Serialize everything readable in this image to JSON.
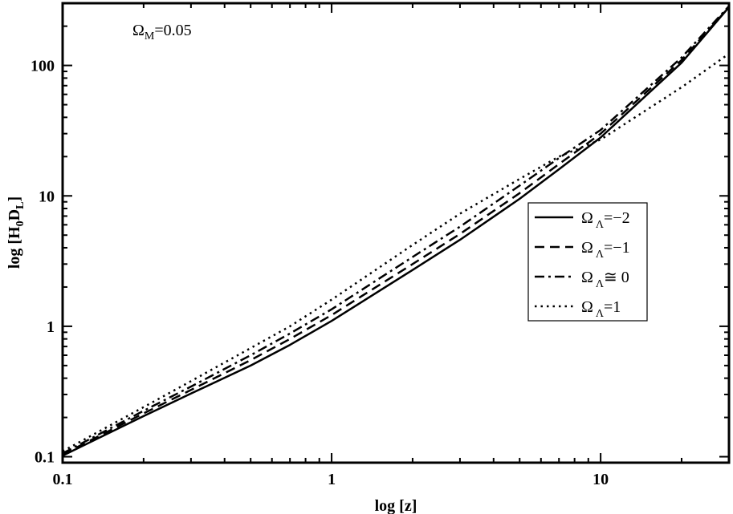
{
  "chart_data": {
    "type": "line",
    "title": "",
    "xlabel": "log [z]",
    "ylabel": {
      "prefix": "log [H",
      "sub1": "0",
      "mid": "D",
      "sub2": "L",
      "suffix": "]"
    },
    "xscale": "log",
    "yscale": "log",
    "xlim": [
      0.1,
      30
    ],
    "ylim": [
      0.09,
      300
    ],
    "x_ticks": [
      "0.1",
      "1",
      "10"
    ],
    "y_ticks": [
      "0.1",
      "1",
      "10",
      "100"
    ],
    "grid": false,
    "annotation": {
      "prefix": "Ω",
      "sub": "M",
      "suffix": "=0.05"
    },
    "legend_position": "right",
    "series": [
      {
        "name": "Ω Λ =−2",
        "legend_symbol": "Ω",
        "legend_sub": "Λ",
        "legend_suffix": "=−2",
        "style": "solid",
        "x": [
          0.1,
          0.2,
          0.3,
          0.5,
          0.7,
          1,
          2,
          3,
          5,
          7,
          10,
          20,
          30
        ],
        "y": [
          0.102,
          0.205,
          0.305,
          0.5,
          0.72,
          1.1,
          2.7,
          4.6,
          9.5,
          16,
          28,
          105,
          280
        ]
      },
      {
        "name": "Ω Λ =−1",
        "legend_symbol": "Ω",
        "legend_sub": "Λ",
        "legend_suffix": "=−1",
        "style": "dashed",
        "x": [
          0.1,
          0.2,
          0.3,
          0.5,
          0.7,
          1,
          2,
          3,
          5,
          7,
          10,
          20,
          30
        ],
        "y": [
          0.104,
          0.215,
          0.325,
          0.55,
          0.8,
          1.22,
          3.0,
          5.1,
          10.5,
          17.5,
          30,
          110,
          280
        ]
      },
      {
        "name": "Ω Λ ≅ 0",
        "legend_symbol": "Ω",
        "legend_sub": "Λ",
        "legend_suffix": "≅ 0",
        "style": "dashdot",
        "x": [
          0.1,
          0.2,
          0.3,
          0.5,
          0.7,
          1,
          2,
          3,
          5,
          7,
          10,
          20,
          30
        ],
        "y": [
          0.106,
          0.225,
          0.345,
          0.6,
          0.88,
          1.35,
          3.4,
          5.8,
          12,
          19.5,
          32,
          115,
          285
        ]
      },
      {
        "name": "Ω Λ =1",
        "legend_symbol": "Ω",
        "legend_sub": "Λ",
        "legend_suffix": "=1",
        "style": "dotted",
        "x": [
          0.1,
          0.2,
          0.3,
          0.5,
          0.7,
          1,
          2,
          3,
          5,
          7,
          10,
          20,
          30
        ],
        "y": [
          0.11,
          0.24,
          0.38,
          0.68,
          1.0,
          1.6,
          4.2,
          7.3,
          13.5,
          20,
          27,
          68,
          123
        ]
      }
    ]
  }
}
